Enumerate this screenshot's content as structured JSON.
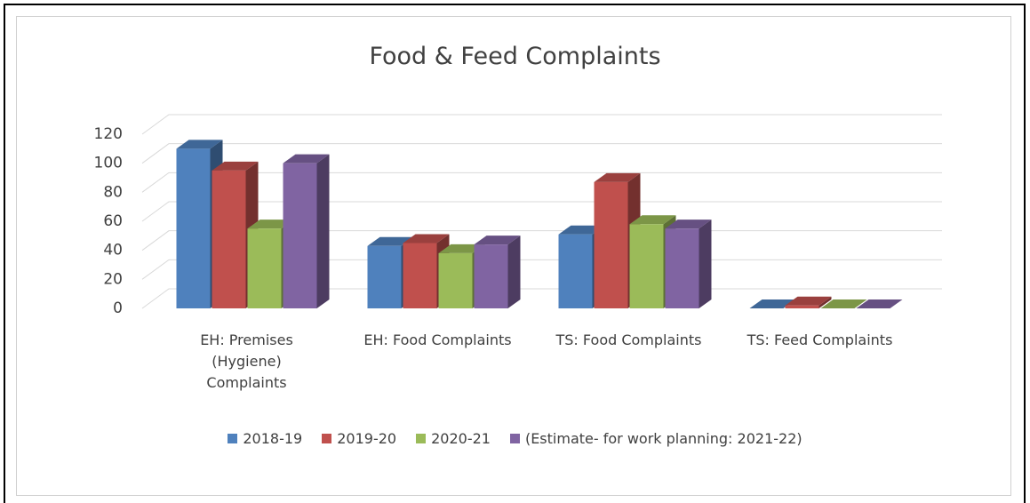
{
  "chart_data": {
    "type": "bar3d",
    "title": "Food & Feed Complaints",
    "categories": [
      "EH: Premises (Hygiene) Complaints",
      "EH: Food Complaints",
      "TS: Food Complaints",
      "TS: Feed Complaints"
    ],
    "series": [
      {
        "name": "2018-19",
        "color": "#4f81bd",
        "values": [
          110,
          43,
          51,
          0
        ]
      },
      {
        "name": "2019-20",
        "color": "#c0504d",
        "values": [
          95,
          45,
          87,
          2
        ]
      },
      {
        "name": "2020-21",
        "color": "#9bbb59",
        "values": [
          55,
          38,
          58,
          0
        ]
      },
      {
        "name": "(Estimate- for work planning: 2021-22)",
        "color": "#8064a2",
        "values": [
          100,
          44,
          55,
          0
        ]
      }
    ],
    "ylim": [
      0,
      120
    ],
    "yticks": [
      0,
      20,
      40,
      60,
      80,
      100,
      120
    ],
    "grid": true,
    "legend": "bottom"
  }
}
